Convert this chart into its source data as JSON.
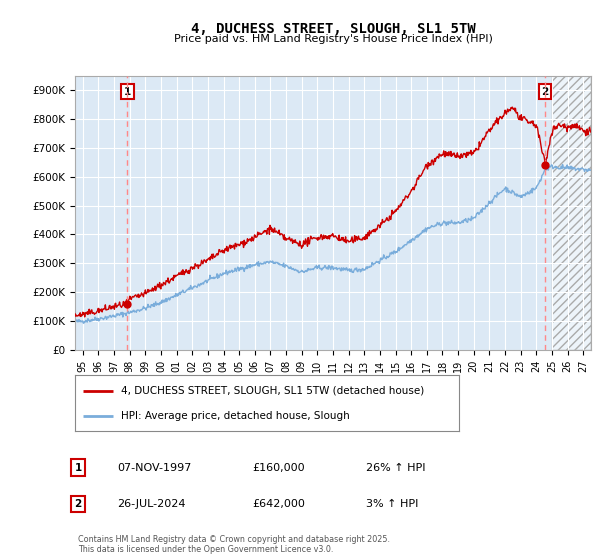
{
  "title": "4, DUCHESS STREET, SLOUGH, SL1 5TW",
  "subtitle": "Price paid vs. HM Land Registry's House Price Index (HPI)",
  "ylim": [
    0,
    950000
  ],
  "xlim_left": 1994.5,
  "xlim_right": 2027.5,
  "background_color": "#ffffff",
  "plot_bg_color": "#dce9f5",
  "grid_color": "#ffffff",
  "sale1_date": 1997.85,
  "sale1_price": 160000,
  "sale1_label": "1",
  "sale2_date": 2024.57,
  "sale2_price": 642000,
  "sale2_label": "2",
  "legend_line1": "4, DUCHESS STREET, SLOUGH, SL1 5TW (detached house)",
  "legend_line2": "HPI: Average price, detached house, Slough",
  "footer": "Contains HM Land Registry data © Crown copyright and database right 2025.\nThis data is licensed under the Open Government Licence v3.0.",
  "hpi_color": "#7aaddb",
  "price_color": "#cc0000",
  "sale_marker_color": "#cc0000",
  "vline_color": "#ff8888",
  "ytick_labels": [
    "£0",
    "£100K",
    "£200K",
    "£300K",
    "£400K",
    "£500K",
    "£600K",
    "£700K",
    "£800K",
    "£900K"
  ],
  "ytick_values": [
    0,
    100000,
    200000,
    300000,
    400000,
    500000,
    600000,
    700000,
    800000,
    900000
  ],
  "xtick_years": [
    1995,
    1996,
    1997,
    1998,
    1999,
    2000,
    2001,
    2002,
    2003,
    2004,
    2005,
    2006,
    2007,
    2008,
    2009,
    2010,
    2011,
    2012,
    2013,
    2014,
    2015,
    2016,
    2017,
    2018,
    2019,
    2020,
    2021,
    2022,
    2023,
    2024,
    2025,
    2026,
    2027
  ],
  "hatch_start": 2025.0,
  "hatch_end": 2027.5,
  "ann1_date": "07-NOV-1997",
  "ann1_price": "£160,000",
  "ann1_hpi": "26% ↑ HPI",
  "ann2_date": "26-JUL-2024",
  "ann2_price": "£642,000",
  "ann2_hpi": "3% ↑ HPI"
}
